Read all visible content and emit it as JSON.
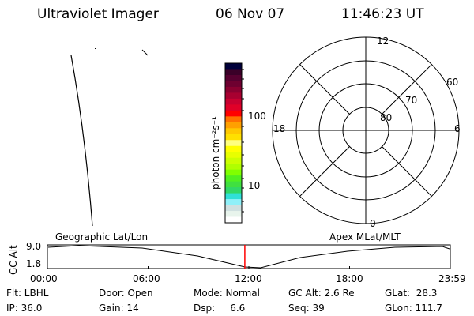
{
  "header": {
    "instrument": "Ultraviolet Imager",
    "date": "06 Nov 07",
    "time": "11:46:23 UT"
  },
  "colorbar": {
    "label": "photon cm⁻²s⁻¹",
    "ticks": [
      "100",
      "10"
    ],
    "colors": [
      "#00003a",
      "#3a0028",
      "#560030",
      "#6e0030",
      "#8a0030",
      "#a80030",
      "#c80030",
      "#e00028",
      "#ff0000",
      "#ff7000",
      "#ffa000",
      "#ffc800",
      "#ffe000",
      "#ffff80",
      "#ffff00",
      "#e8ff00",
      "#ccff00",
      "#b0ff00",
      "#80ff00",
      "#50f020",
      "#40e040",
      "#30d868",
      "#30e0d8",
      "#90f0f8",
      "#d0e0e0",
      "#e8f4ec",
      "#ffffff"
    ]
  },
  "polar": {
    "labels": {
      "top": "12",
      "bottom": "0",
      "left": "18",
      "right": "6"
    },
    "rings": [
      "60",
      "70",
      "80"
    ]
  },
  "altitude": {
    "ylabel": "GC Alt",
    "yticks": [
      "9.0",
      "1.8"
    ],
    "left_label": "Geographic Lat/Lon",
    "right_label": "Apex MLat/MLT",
    "xticks": [
      "00:00",
      "06:00",
      "12:00",
      "18:00",
      "23:59"
    ],
    "current_time_fraction": 0.49,
    "marker_color": "#ff0000"
  },
  "status": [
    [
      "Flt: LBHL",
      "Door: Open",
      "Mode: Normal",
      "GC Alt: 2.6 Re",
      "GLat:  28.3"
    ],
    [
      "IP: 36.0",
      "Gain: 14",
      "Dsp:     6.6",
      "Seq: 39",
      "GLon: 111.7"
    ]
  ]
}
